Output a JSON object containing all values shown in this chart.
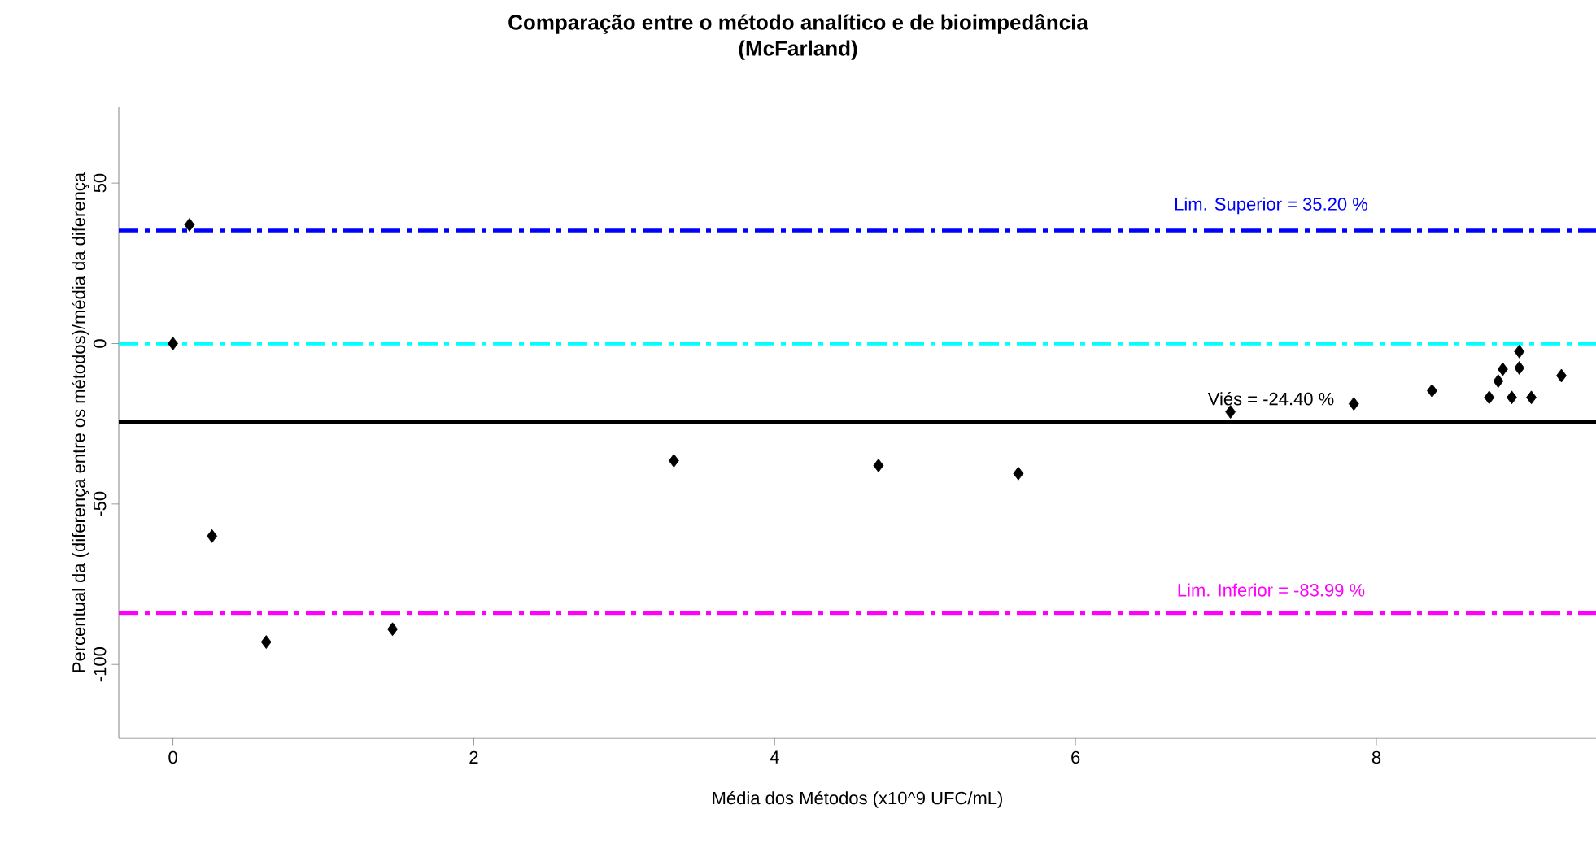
{
  "chart_data": {
    "type": "scatter",
    "title": "Comparação entre o método analítico e de bioimpedância",
    "subtitle": "(McFarland)",
    "xlabel": "Média dos Métodos (x10^9 UFC/mL)",
    "ylabel": "Percentual da (diferença entre os métodos)/média da diferença",
    "x": [
      0,
      0.11,
      0.26,
      0.62,
      1.46,
      3.33,
      4.69,
      5.62,
      7.03,
      7.85,
      8.37,
      8.75,
      8.81,
      8.84,
      8.9,
      8.95,
      8.95,
      9.03,
      9.23
    ],
    "values": [
      0,
      37,
      -60,
      -93,
      -89,
      -36.5,
      -38,
      -40.5,
      -21.3,
      -18.8,
      -14.7,
      -16.8,
      -11.7,
      -8,
      -16.8,
      -7.6,
      -2.5,
      -16.8,
      -10
    ],
    "color": "#000000",
    "marker": "diamond",
    "xlim": [
      -0.36,
      9.46
    ],
    "ylim": [
      -123,
      73.6
    ],
    "xticks": [
      0,
      2,
      4,
      6,
      8
    ],
    "yticks": [
      -100,
      -50,
      0,
      50
    ],
    "grid": false,
    "ref_lines": [
      {
        "axis": "y",
        "value": 35.2,
        "label": "Lim. Superior =  35.20 %",
        "color": "#0000ff",
        "line_style": "dashdot"
      },
      {
        "axis": "y",
        "value": 0,
        "color": "#00ffff",
        "line_style": "dashdot"
      },
      {
        "axis": "y",
        "value": -24.4,
        "label": "Viés =  -24.40 %",
        "color": "#000000",
        "line_style": "solid"
      },
      {
        "axis": "y",
        "value": -83.99,
        "label": "Lim. Inferior =  -83.99 %",
        "color": "#ff00ff",
        "line_style": "dashdot"
      }
    ]
  }
}
